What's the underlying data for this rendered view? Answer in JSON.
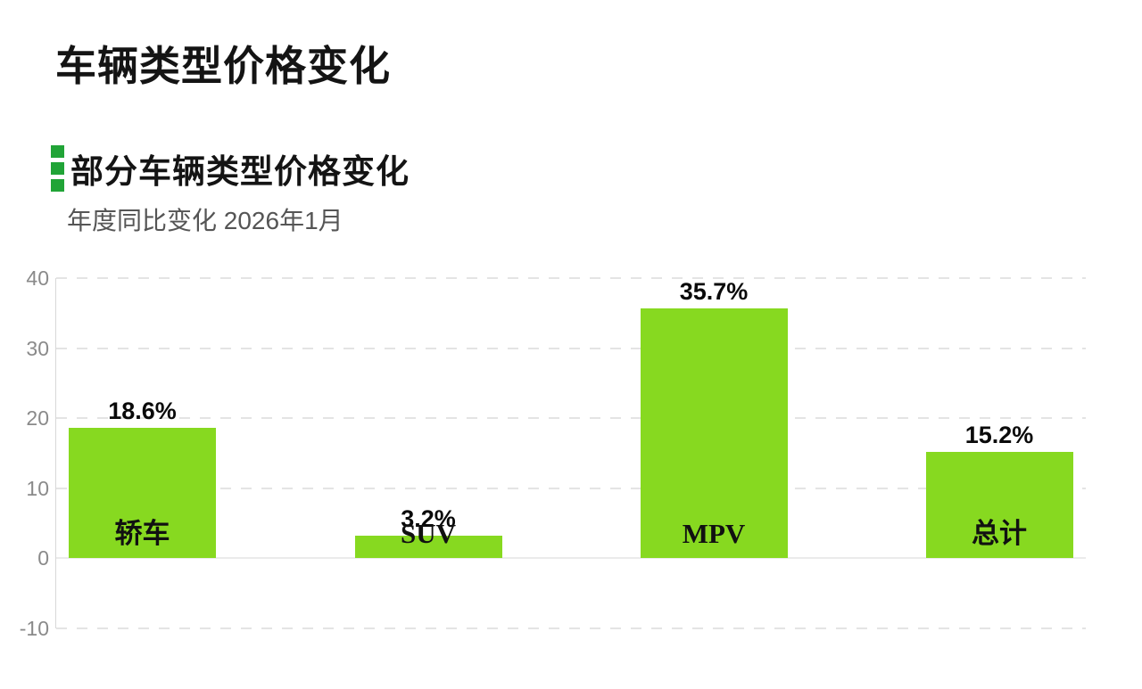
{
  "header": {
    "title": "车辆类型价格变化",
    "section_title": "部分车辆类型价格变化",
    "subtitle": "年度同比变化 2026年1月"
  },
  "colors": {
    "bar": "#87d920",
    "accent_green": "#21a437",
    "title_text": "#141414",
    "subtitle_text": "#555555",
    "axis_text": "#8a8a8a",
    "gridline": "#e4e4e4",
    "zero_line": "#ebebeb",
    "background": "#ffffff"
  },
  "chart_data": {
    "type": "bar",
    "title": "部分车辆类型价格变化",
    "subtitle": "年度同比变化 2026年1月",
    "categories": [
      "轿车",
      "SUV",
      "MPV",
      "总计"
    ],
    "values": [
      18.6,
      3.2,
      35.7,
      15.2
    ],
    "value_labels": [
      "18.6%",
      "3.2%",
      "35.7%",
      "15.2%"
    ],
    "xlabel": "",
    "ylabel": "",
    "ylim": [
      -10,
      40
    ],
    "yticks": [
      40,
      30,
      20,
      10,
      0,
      -10
    ],
    "grid": "horizontal-dashed",
    "legend_position": "none",
    "bar_color": "#87d920",
    "value_suffix": "%"
  }
}
